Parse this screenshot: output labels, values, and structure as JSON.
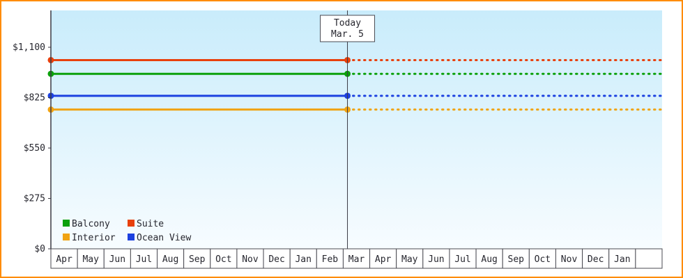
{
  "page": {
    "border_color": "#ff8c00",
    "plot_bg_top": "#c9ecfb",
    "plot_bg_bottom": "#f7fcff",
    "axis_color": "#3a3a44",
    "cell_border_color": "#4a4a52",
    "text_color": "#26262e"
  },
  "chart_data": {
    "type": "line",
    "title": "",
    "ylabel": "",
    "xlabel": "",
    "ylim": [
      0,
      1100
    ],
    "y_ticks": [
      {
        "label": "$0",
        "value": 0
      },
      {
        "label": "$275",
        "value": 275
      },
      {
        "label": "$550",
        "value": 550
      },
      {
        "label": "$825",
        "value": 825
      },
      {
        "label": "$1,100",
        "value": 1100
      }
    ],
    "x_months": [
      "Apr",
      "May",
      "Jun",
      "Jul",
      "Aug",
      "Sep",
      "Oct",
      "Nov",
      "Dec",
      "Jan",
      "Feb",
      "Mar",
      "Apr",
      "May",
      "Jun",
      "Jul",
      "Aug",
      "Sep",
      "Oct",
      "Nov",
      "Dec",
      "Jan"
    ],
    "today_position": {
      "month_index": 11,
      "fraction": 0.16
    },
    "today_label": {
      "line1": "Today",
      "line2": "Mar. 5"
    },
    "series": [
      {
        "name": "Suite",
        "color": "#e8400c",
        "value": 1030
      },
      {
        "name": "Balcony",
        "color": "#0ba00b",
        "value": 955
      },
      {
        "name": "Ocean View",
        "color": "#1c41e0",
        "value": 835
      },
      {
        "name": "Interior",
        "color": "#f0a313",
        "value": 760
      }
    ],
    "line_style_note": "solid before today, dotted forecast after today",
    "legend": {
      "position": "bottom-left",
      "rows": [
        [
          "Balcony",
          "Suite"
        ],
        [
          "Interior",
          "Ocean View"
        ]
      ]
    }
  }
}
